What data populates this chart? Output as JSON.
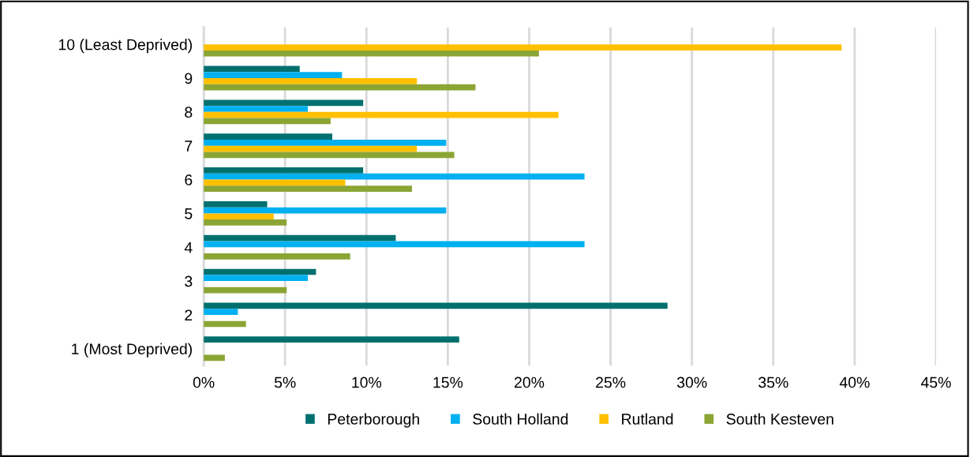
{
  "chart_data": {
    "type": "bar",
    "orientation": "horizontal",
    "categories": [
      "10 (Least Deprived)",
      "9",
      "8",
      "7",
      "6",
      "5",
      "4",
      "3",
      "2",
      "1 (Most Deprived)"
    ],
    "series": [
      {
        "name": "Peterborough",
        "color": "#00706f",
        "values": [
          null,
          5.9,
          9.8,
          7.9,
          9.8,
          3.9,
          11.8,
          6.9,
          28.5,
          15.7
        ]
      },
      {
        "name": "South Holland",
        "color": "#00b0f0",
        "values": [
          null,
          8.5,
          6.4,
          14.9,
          23.4,
          14.9,
          23.4,
          6.4,
          2.1,
          null
        ]
      },
      {
        "name": "Rutland",
        "color": "#ffc000",
        "values": [
          39.2,
          13.1,
          21.8,
          13.1,
          8.7,
          4.3,
          null,
          null,
          null,
          null
        ]
      },
      {
        "name": "South Kesteven",
        "color": "#8ba534",
        "values": [
          20.6,
          16.7,
          7.8,
          15.4,
          12.8,
          5.1,
          9.0,
          5.1,
          2.6,
          1.3
        ]
      }
    ],
    "xlim": [
      0,
      45
    ],
    "xticks": [
      {
        "value": 0,
        "label": "0%"
      },
      {
        "value": 5,
        "label": "5%"
      },
      {
        "value": 10,
        "label": "10%"
      },
      {
        "value": 15,
        "label": "15%"
      },
      {
        "value": 20,
        "label": "20%"
      },
      {
        "value": 25,
        "label": "25%"
      },
      {
        "value": 30,
        "label": "30%"
      },
      {
        "value": 35,
        "label": "35%"
      },
      {
        "value": 40,
        "label": "40%"
      },
      {
        "value": 45,
        "label": "45%"
      }
    ],
    "grid": "x",
    "legend": "bottom"
  }
}
